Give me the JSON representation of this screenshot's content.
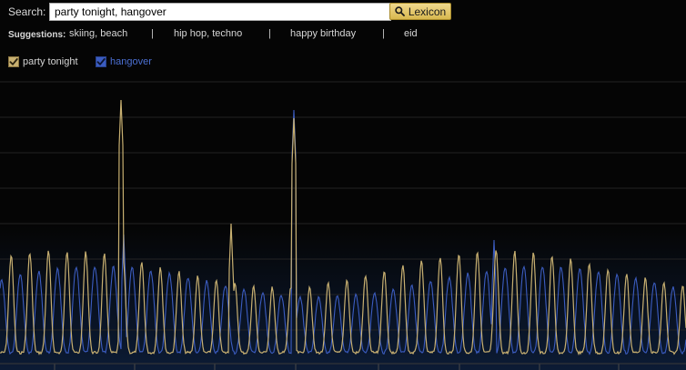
{
  "search": {
    "label": "Search:",
    "value": "party tonight, hangover",
    "button_label": "Lexicon",
    "button_icon": "search-icon"
  },
  "suggestions": {
    "label": "Suggestions:",
    "items": [
      "skiing, beach",
      "hip hop, techno",
      "happy birthday",
      "eid"
    ],
    "separator": "|"
  },
  "legend": {
    "items": [
      {
        "label": "party tonight",
        "checked": true,
        "color": "#c8b071"
      },
      {
        "label": "hangover",
        "checked": true,
        "color": "#3b5cc0"
      }
    ]
  },
  "colors": {
    "background": "#050505",
    "gridline": "#242424",
    "party_line": "#c8b071",
    "hangover_line": "#3b5cc0",
    "button_gold": "#e6c86a"
  }
}
